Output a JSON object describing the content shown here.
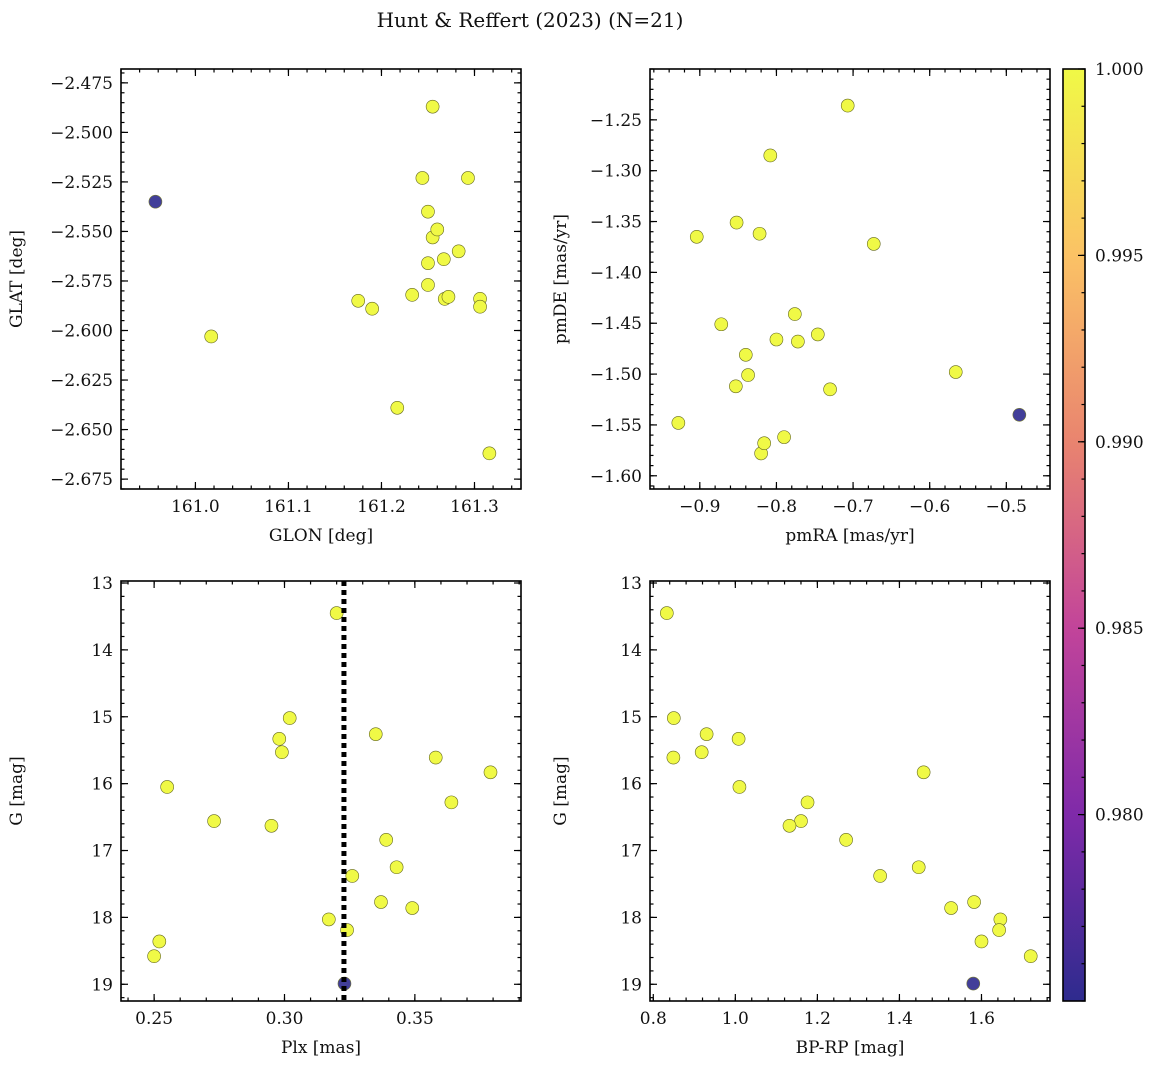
{
  "title": "Hunt & Reffert (2023) (N=21)",
  "colors": {
    "member": "#f0f946",
    "low": "#2e2b8e",
    "point_edge": "#666a20",
    "ref_line": "#000000"
  },
  "chart_data": [
    {
      "type": "scatter",
      "id": "glon_glat",
      "xlabel": "GLON [deg]",
      "ylabel": "GLAT [deg]",
      "xlim": [
        160.92,
        161.35
      ],
      "ylim": [
        -2.68,
        -2.468
      ],
      "xticks": [
        161.0,
        161.1,
        161.2,
        161.3
      ],
      "xtick_labels": [
        "161.0",
        "161.1",
        "161.2",
        "161.3"
      ],
      "yticks": [
        -2.475,
        -2.5,
        -2.525,
        -2.55,
        -2.575,
        -2.6,
        -2.625,
        -2.65,
        -2.675
      ],
      "ytick_labels": [
        "−2.475",
        "−2.500",
        "−2.525",
        "−2.550",
        "−2.575",
        "−2.600",
        "−2.625",
        "−2.650",
        "−2.675"
      ],
      "points": [
        {
          "x": 160.957,
          "y": -2.535,
          "p": 0.975
        },
        {
          "x": 161.017,
          "y": -2.603,
          "p": 1.0
        },
        {
          "x": 161.175,
          "y": -2.585,
          "p": 1.0
        },
        {
          "x": 161.19,
          "y": -2.589,
          "p": 1.0
        },
        {
          "x": 161.217,
          "y": -2.639,
          "p": 1.0
        },
        {
          "x": 161.233,
          "y": -2.582,
          "p": 1.0
        },
        {
          "x": 161.244,
          "y": -2.523,
          "p": 1.0
        },
        {
          "x": 161.25,
          "y": -2.54,
          "p": 1.0
        },
        {
          "x": 161.25,
          "y": -2.566,
          "p": 1.0
        },
        {
          "x": 161.25,
          "y": -2.577,
          "p": 1.0
        },
        {
          "x": 161.255,
          "y": -2.487,
          "p": 1.0
        },
        {
          "x": 161.255,
          "y": -2.553,
          "p": 1.0
        },
        {
          "x": 161.26,
          "y": -2.549,
          "p": 1.0
        },
        {
          "x": 161.267,
          "y": -2.564,
          "p": 1.0
        },
        {
          "x": 161.268,
          "y": -2.584,
          "p": 1.0
        },
        {
          "x": 161.272,
          "y": -2.583,
          "p": 1.0
        },
        {
          "x": 161.283,
          "y": -2.56,
          "p": 1.0
        },
        {
          "x": 161.293,
          "y": -2.523,
          "p": 1.0
        },
        {
          "x": 161.306,
          "y": -2.584,
          "p": 1.0
        },
        {
          "x": 161.306,
          "y": -2.588,
          "p": 1.0
        },
        {
          "x": 161.316,
          "y": -2.662,
          "p": 1.0
        }
      ]
    },
    {
      "type": "scatter",
      "id": "pmra_pmde",
      "xlabel": "pmRA [mas/yr]",
      "ylabel": "pmDE [mas/yr]",
      "xlim": [
        -0.965,
        -0.443
      ],
      "ylim": [
        -1.613,
        -1.2
      ],
      "xticks": [
        -0.9,
        -0.8,
        -0.7,
        -0.6,
        -0.5
      ],
      "xtick_labels": [
        "−0.9",
        "−0.8",
        "−0.7",
        "−0.6",
        "−0.5"
      ],
      "yticks": [
        -1.25,
        -1.3,
        -1.35,
        -1.4,
        -1.45,
        -1.5,
        -1.55,
        -1.6
      ],
      "ytick_labels": [
        "−1.25",
        "−1.30",
        "−1.35",
        "−1.40",
        "−1.45",
        "−1.50",
        "−1.55",
        "−1.60"
      ],
      "points": [
        {
          "x": -0.928,
          "y": -1.548,
          "p": 1.0
        },
        {
          "x": -0.904,
          "y": -1.365,
          "p": 1.0
        },
        {
          "x": -0.872,
          "y": -1.451,
          "p": 1.0
        },
        {
          "x": -0.852,
          "y": -1.351,
          "p": 1.0
        },
        {
          "x": -0.853,
          "y": -1.512,
          "p": 1.0
        },
        {
          "x": -0.84,
          "y": -1.481,
          "p": 1.0
        },
        {
          "x": -0.837,
          "y": -1.501,
          "p": 1.0
        },
        {
          "x": -0.822,
          "y": -1.362,
          "p": 1.0
        },
        {
          "x": -0.82,
          "y": -1.578,
          "p": 1.0
        },
        {
          "x": -0.816,
          "y": -1.568,
          "p": 1.0
        },
        {
          "x": -0.808,
          "y": -1.285,
          "p": 1.0
        },
        {
          "x": -0.8,
          "y": -1.466,
          "p": 1.0
        },
        {
          "x": -0.79,
          "y": -1.562,
          "p": 1.0
        },
        {
          "x": -0.776,
          "y": -1.441,
          "p": 1.0
        },
        {
          "x": -0.772,
          "y": -1.468,
          "p": 1.0
        },
        {
          "x": -0.746,
          "y": -1.461,
          "p": 1.0
        },
        {
          "x": -0.73,
          "y": -1.515,
          "p": 1.0
        },
        {
          "x": -0.707,
          "y": -1.236,
          "p": 1.0
        },
        {
          "x": -0.673,
          "y": -1.372,
          "p": 1.0
        },
        {
          "x": -0.566,
          "y": -1.498,
          "p": 1.0
        },
        {
          "x": -0.483,
          "y": -1.54,
          "p": 0.975
        }
      ]
    },
    {
      "type": "scatter",
      "id": "plx_g",
      "xlabel": "Plx [mas]",
      "ylabel": "G [mag]",
      "xlim": [
        0.2373,
        0.3907
      ],
      "ylim": [
        19.25,
        12.97
      ],
      "xticks": [
        0.25,
        0.3,
        0.35
      ],
      "xtick_labels": [
        "0.25",
        "0.30",
        "0.35"
      ],
      "yticks": [
        13,
        14,
        15,
        16,
        17,
        18,
        19
      ],
      "ytick_labels": [
        "13",
        "14",
        "15",
        "16",
        "17",
        "18",
        "19"
      ],
      "vline": 0.3228,
      "points": [
        {
          "x": 0.32,
          "y": 13.45,
          "p": 1.0
        },
        {
          "x": 0.302,
          "y": 15.02,
          "p": 1.0
        },
        {
          "x": 0.335,
          "y": 15.26,
          "p": 1.0
        },
        {
          "x": 0.298,
          "y": 15.33,
          "p": 1.0
        },
        {
          "x": 0.299,
          "y": 15.53,
          "p": 1.0
        },
        {
          "x": 0.358,
          "y": 15.61,
          "p": 1.0
        },
        {
          "x": 0.379,
          "y": 15.83,
          "p": 1.0
        },
        {
          "x": 0.255,
          "y": 16.05,
          "p": 1.0
        },
        {
          "x": 0.364,
          "y": 16.28,
          "p": 1.0
        },
        {
          "x": 0.273,
          "y": 16.56,
          "p": 1.0
        },
        {
          "x": 0.295,
          "y": 16.63,
          "p": 1.0
        },
        {
          "x": 0.339,
          "y": 16.84,
          "p": 1.0
        },
        {
          "x": 0.343,
          "y": 17.25,
          "p": 1.0
        },
        {
          "x": 0.326,
          "y": 17.38,
          "p": 1.0
        },
        {
          "x": 0.337,
          "y": 17.77,
          "p": 1.0
        },
        {
          "x": 0.349,
          "y": 17.86,
          "p": 1.0
        },
        {
          "x": 0.317,
          "y": 18.03,
          "p": 1.0
        },
        {
          "x": 0.324,
          "y": 18.19,
          "p": 1.0
        },
        {
          "x": 0.252,
          "y": 18.36,
          "p": 1.0
        },
        {
          "x": 0.25,
          "y": 18.58,
          "p": 1.0
        },
        {
          "x": 0.323,
          "y": 18.99,
          "p": 0.975
        }
      ]
    },
    {
      "type": "scatter",
      "id": "bprp_g",
      "xlabel": "BP-RP [mag]",
      "ylabel": "G [mag]",
      "xlim": [
        0.792,
        1.767
      ],
      "ylim": [
        19.25,
        12.97
      ],
      "xticks": [
        0.8,
        1.0,
        1.2,
        1.4,
        1.6
      ],
      "xtick_labels": [
        "0.8",
        "1.0",
        "1.2",
        "1.4",
        "1.6"
      ],
      "yticks": [
        13,
        14,
        15,
        16,
        17,
        18,
        19
      ],
      "ytick_labels": [
        "13",
        "14",
        "15",
        "16",
        "17",
        "18",
        "19"
      ],
      "points": [
        {
          "x": 0.833,
          "y": 13.45,
          "p": 1.0
        },
        {
          "x": 0.85,
          "y": 15.02,
          "p": 1.0
        },
        {
          "x": 0.93,
          "y": 15.26,
          "p": 1.0
        },
        {
          "x": 1.008,
          "y": 15.33,
          "p": 1.0
        },
        {
          "x": 0.918,
          "y": 15.53,
          "p": 1.0
        },
        {
          "x": 0.849,
          "y": 15.61,
          "p": 1.0
        },
        {
          "x": 1.459,
          "y": 15.83,
          "p": 1.0
        },
        {
          "x": 1.01,
          "y": 16.05,
          "p": 1.0
        },
        {
          "x": 1.176,
          "y": 16.28,
          "p": 1.0
        },
        {
          "x": 1.16,
          "y": 16.56,
          "p": 1.0
        },
        {
          "x": 1.132,
          "y": 16.63,
          "p": 1.0
        },
        {
          "x": 1.27,
          "y": 16.84,
          "p": 1.0
        },
        {
          "x": 1.447,
          "y": 17.25,
          "p": 1.0
        },
        {
          "x": 1.353,
          "y": 17.38,
          "p": 1.0
        },
        {
          "x": 1.582,
          "y": 17.77,
          "p": 1.0
        },
        {
          "x": 1.526,
          "y": 17.86,
          "p": 1.0
        },
        {
          "x": 1.646,
          "y": 18.03,
          "p": 1.0
        },
        {
          "x": 1.643,
          "y": 18.19,
          "p": 1.0
        },
        {
          "x": 1.6,
          "y": 18.36,
          "p": 1.0
        },
        {
          "x": 1.72,
          "y": 18.58,
          "p": 1.0
        },
        {
          "x": 1.58,
          "y": 18.99,
          "p": 0.975
        }
      ]
    }
  ],
  "colorbar": {
    "range": [
      0.975,
      1.0
    ],
    "ticks": [
      0.98,
      0.985,
      0.99,
      0.995,
      1.0
    ],
    "tick_labels": [
      "0.980",
      "0.985",
      "0.990",
      "0.995",
      "1.000"
    ],
    "stops": [
      "#2e2b8e",
      "#7f2aa9",
      "#c2449a",
      "#e9846f",
      "#fbc265",
      "#f0f946"
    ]
  }
}
